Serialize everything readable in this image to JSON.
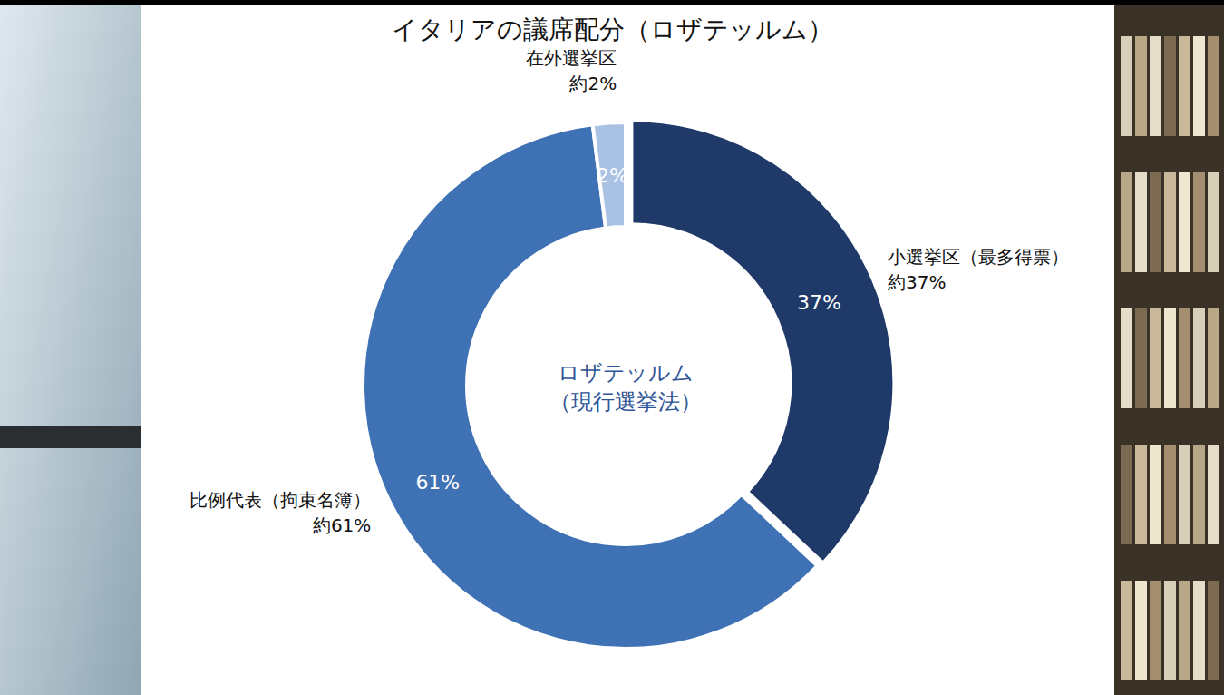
{
  "chart_data": {
    "type": "pie",
    "title": "イタリアの議席配分（ロザテッルム）",
    "center_label": [
      "ロザテッルム",
      "（現行選挙法）"
    ],
    "categories": [
      "小選挙区（最多得票）",
      "比例代表（拘束名簿）",
      "在外選挙区"
    ],
    "values": [
      37,
      61,
      2
    ],
    "value_labels": [
      "37%",
      "61%",
      "2%"
    ],
    "approx_labels": [
      "約37%",
      "約61%",
      "約2%"
    ],
    "colors": [
      "#1f3a68",
      "#3f72b5",
      "#a9c1e3"
    ],
    "data_labels": true
  }
}
